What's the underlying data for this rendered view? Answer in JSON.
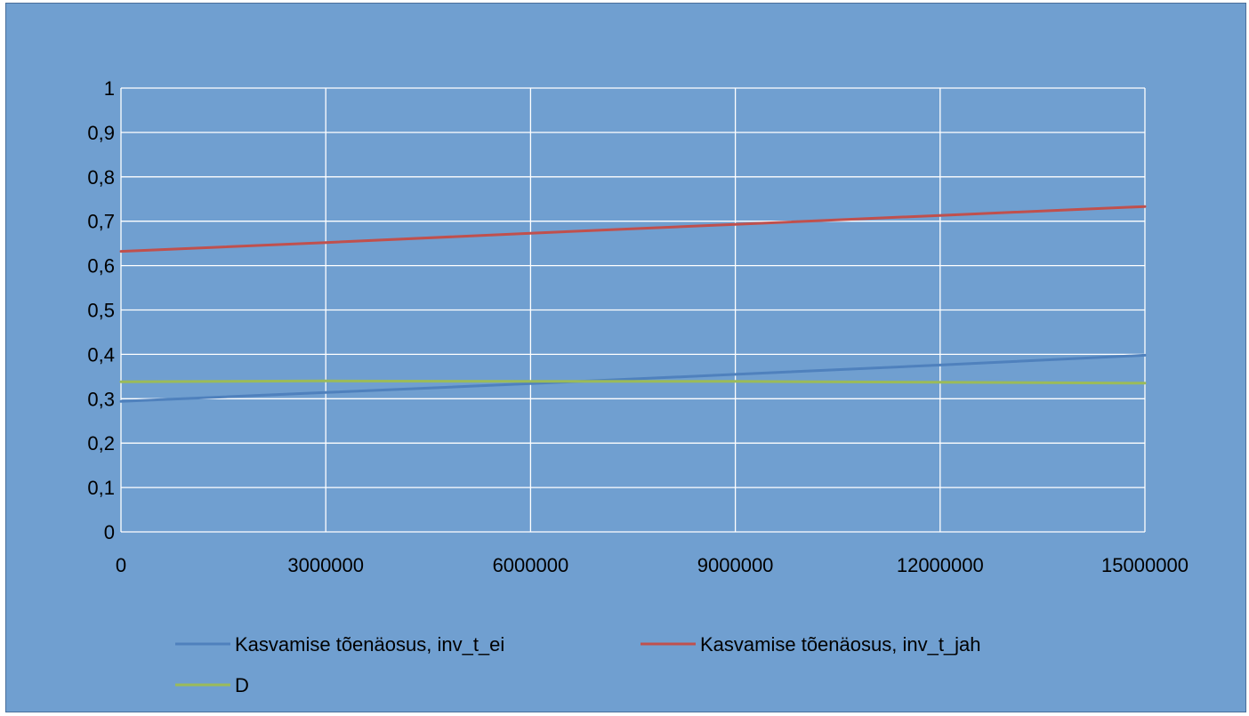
{
  "chart_data": {
    "type": "line",
    "title": "",
    "xlabel": "",
    "ylabel": "",
    "xlim": [
      0,
      15000000
    ],
    "ylim": [
      0,
      1
    ],
    "x_ticks": [
      "0",
      "3000000",
      "6000000",
      "9000000",
      "12000000",
      "15000000"
    ],
    "x_tick_values": [
      0,
      3000000,
      6000000,
      9000000,
      12000000,
      15000000
    ],
    "y_ticks": [
      "0",
      "0,1",
      "0,2",
      "0,3",
      "0,4",
      "0,5",
      "0,6",
      "0,7",
      "0,8",
      "0,9",
      "1"
    ],
    "y_tick_values": [
      0,
      0.1,
      0.2,
      0.3,
      0.4,
      0.5,
      0.6,
      0.7,
      0.8,
      0.9,
      1
    ],
    "grid": true,
    "legend_position": "bottom",
    "background_color": "#709fd0",
    "x": [
      0,
      3000000,
      6000000,
      9000000,
      12000000,
      15000000
    ],
    "series": [
      {
        "name": "Kasvamise tõenäosus, inv_t_ei",
        "color": "#4f81bd",
        "values": [
          0.294,
          0.314,
          0.334,
          0.355,
          0.376,
          0.398
        ]
      },
      {
        "name": "Kasvamise tõenäosus, inv_t_jah",
        "color": "#c0504d",
        "values": [
          0.632,
          0.652,
          0.673,
          0.693,
          0.713,
          0.733
        ]
      },
      {
        "name": "D",
        "color": "#9bbb59",
        "values": [
          0.338,
          0.34,
          0.339,
          0.339,
          0.337,
          0.335
        ]
      }
    ]
  }
}
